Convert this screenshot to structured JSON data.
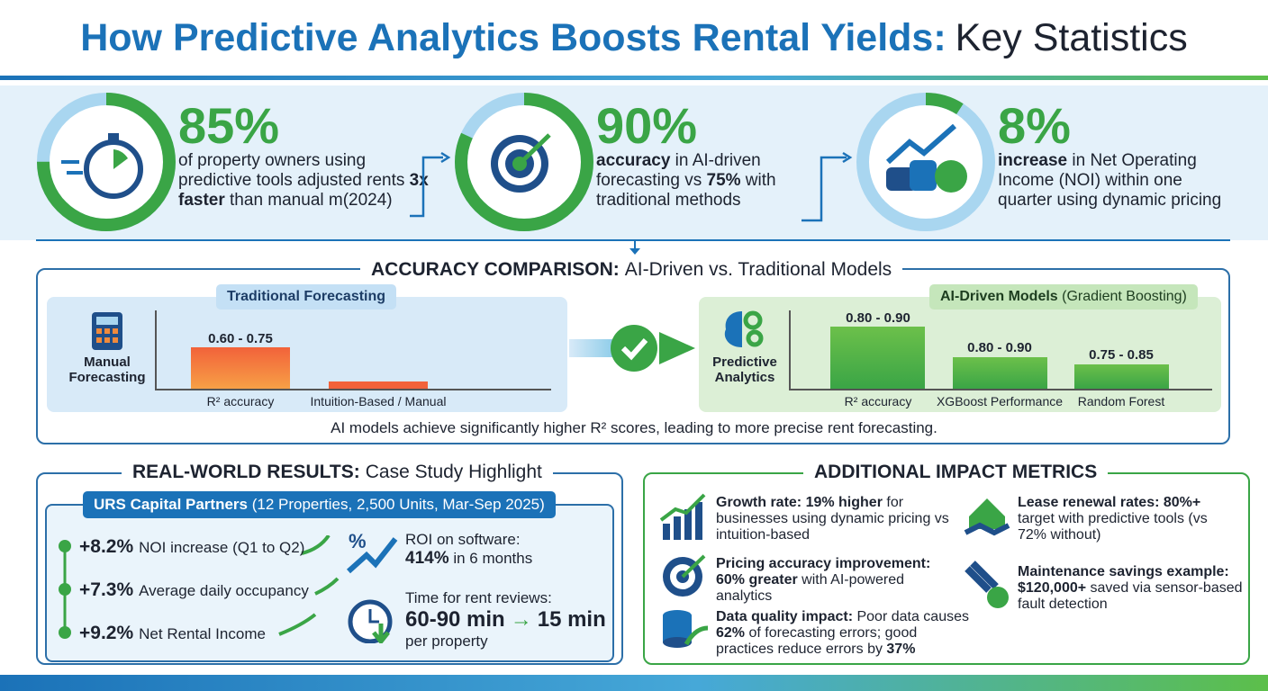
{
  "header": {
    "title_highlight": "How Predictive Analytics Boosts Rental Yields:",
    "title_rest": "Key Statistics"
  },
  "stats": [
    {
      "value": "85%",
      "text": [
        {
          "t": "of property owners using predictive tools adjusted rents ",
          "b": false
        },
        {
          "t": "3x faster",
          "b": true
        },
        {
          "t": " than manual m(2024)",
          "b": false
        }
      ]
    },
    {
      "value": "90%",
      "text": [
        {
          "t": "accuracy",
          "b": true
        },
        {
          "t": " in AI-driven forecasting vs ",
          "b": false
        },
        {
          "t": "75%",
          "b": true
        },
        {
          "t": " with traditional methods",
          "b": false
        }
      ]
    },
    {
      "value": "8%",
      "text": [
        {
          "t": "increase",
          "b": true
        },
        {
          "t": " in Net Operating Income (NOI) within one quarter using dynamic pricing",
          "b": false
        }
      ]
    }
  ],
  "accuracy": {
    "title_bold": "ACCURACY COMPARISON:",
    "title_rest": "AI-Driven vs. Traditional Models",
    "traditional": {
      "tag": "Traditional Forecasting",
      "icon_label": "Manual Forecasting",
      "bars": [
        {
          "label": "R² accuracy",
          "value": "0.60 - 0.75"
        },
        {
          "label": "Intuition-Based / Manual"
        }
      ]
    },
    "ai": {
      "tag_bold": "AI-Driven Models",
      "tag_rest": "(Gradient Boosting)",
      "icon_label": "Predictive Analytics",
      "bars": [
        {
          "label": "R² accuracy",
          "value": "0.80 - 0.90"
        },
        {
          "label": "XGBoost Performance",
          "value": "0.80 - 0.90"
        },
        {
          "label": "Random Forest",
          "value": "0.75 - 0.85"
        }
      ]
    },
    "note": "AI models achieve significantly higher R² scores, leading to more precise rent forecasting."
  },
  "case_study": {
    "title_bold": "REAL-WORLD RESULTS:",
    "title_rest": "Case Study Highlight",
    "company_bold": "URS Capital Partners",
    "company_rest": "(12 Properties, 2,500 Units, Mar-Sep 2025)",
    "results": [
      {
        "value": "+8.2%",
        "label": "NOI increase (Q1 to Q2)"
      },
      {
        "value": "+7.3%",
        "label": "Average daily occupancy"
      },
      {
        "value": "+9.2%",
        "label": "Net Rental Income"
      }
    ],
    "roi": {
      "label": "ROI on software:",
      "value": "414%",
      "rest": "in 6 months"
    },
    "time": {
      "label": "Time for rent reviews:",
      "before": "60-90 min",
      "after": "15 min",
      "rest": "per property"
    }
  },
  "impact": {
    "title": "ADDITIONAL IMPACT METRICS",
    "items": [
      [
        {
          "t": "Growth rate: 19% higher",
          "b": true
        },
        {
          "t": " for businesses using dynamic pricing vs intuition-based",
          "b": false
        }
      ],
      [
        {
          "t": "Pricing accuracy improvement: 60% greater",
          "b": true
        },
        {
          "t": " with AI-powered analytics",
          "b": false
        }
      ],
      [
        {
          "t": "Data quality impact:",
          "b": true
        },
        {
          "t": " Poor data causes ",
          "b": false
        },
        {
          "t": "62%",
          "b": true
        },
        {
          "t": " of forecasting errors; good practices reduce errors by ",
          "b": false
        },
        {
          "t": "37%",
          "b": true
        }
      ],
      [
        {
          "t": "Lease renewal rates: 80%+",
          "b": true
        },
        {
          "t": " target with predictive tools (vs 72% without)",
          "b": false
        }
      ],
      [
        {
          "t": "Maintenance savings example: $120,000+",
          "b": true
        },
        {
          "t": " saved via sensor-based fault detection",
          "b": false
        }
      ]
    ]
  }
}
